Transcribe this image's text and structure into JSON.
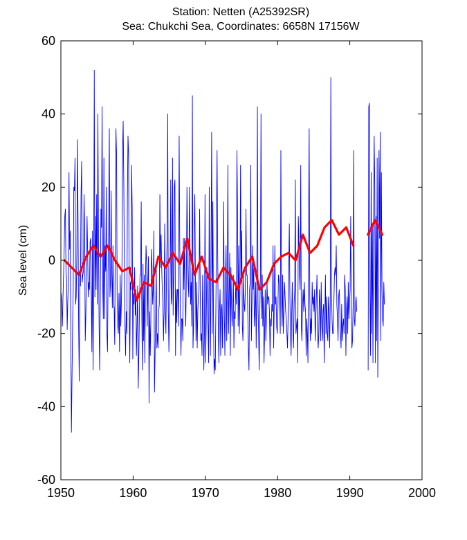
{
  "chart_data": {
    "type": "line",
    "title_lines": [
      "Station: Netten (A25392SR)",
      "Sea: Chukchi Sea, Coordinates: 6658N 17156W"
    ],
    "xlabel": "",
    "ylabel": "Sea level (cm)",
    "xlim": [
      1950,
      2000
    ],
    "ylim": [
      -60,
      60
    ],
    "xticks": [
      1950,
      1960,
      1970,
      1980,
      1990,
      2000
    ],
    "yticks": [
      -60,
      -40,
      -20,
      0,
      20,
      40,
      60
    ],
    "grid": false,
    "series": [
      {
        "kind": "monthly",
        "color": "#0000ff",
        "segments": [
          {
            "x_start": 1950.04,
            "x_step": 0.0833333,
            "values": [
              -9,
              -12,
              -18,
              -10,
              -4,
              3,
              12,
              14,
              -3,
              -5,
              -19,
              -11,
              -6,
              24,
              3,
              8,
              -20,
              -47,
              -32,
              -18,
              -8,
              20,
              19,
              28,
              -12,
              -10,
              1,
              33,
              12,
              -18,
              -33,
              -4,
              -7,
              18,
              27,
              -6,
              -4,
              -3,
              18,
              8,
              -22,
              -15,
              -2,
              12,
              2,
              -10,
              -6,
              -8,
              5,
              6,
              -10,
              -25,
              8,
              -30,
              -4,
              52,
              -10,
              12,
              -8,
              18,
              -12,
              40,
              6,
              -18,
              -30,
              -10,
              14,
              9,
              42,
              -7,
              -16,
              28,
              -16,
              4,
              -3,
              20,
              -20,
              -25,
              -3,
              12,
              36,
              -10,
              -6,
              19,
              -3,
              -13,
              4,
              -12,
              -13,
              -23,
              10,
              36,
              29,
              -10,
              -18,
              -20,
              -9,
              -25,
              -4,
              -18,
              -12,
              -2,
              30,
              38,
              22,
              -2,
              -18,
              -26,
              -14,
              -20,
              16,
              34,
              29,
              -12,
              -28,
              -6,
              -8,
              26,
              14,
              -27,
              -9,
              -12,
              -2,
              -15,
              -8,
              -26,
              -18,
              -7,
              -35,
              -26,
              -14,
              -4,
              -4,
              16,
              -16,
              -30,
              -1,
              -22,
              -4,
              -28,
              -6,
              4,
              -1,
              -18,
              -6,
              1,
              -39,
              -14,
              -26,
              -16,
              3,
              -2,
              -12,
              -8,
              8,
              -36,
              -26,
              -14,
              -2,
              -24,
              -20,
              -24,
              -14,
              -12,
              18,
              -2,
              7,
              -2,
              -8,
              -12,
              -22,
              -13,
              10,
              -14,
              -20,
              -4,
              6,
              40,
              -14,
              -25,
              -14,
              -6,
              22,
              -12,
              -10,
              28,
              -15,
              -4,
              20,
              22,
              -26,
              -8,
              -17,
              -8,
              -8,
              -18,
              34,
              4,
              -14,
              -26,
              -16,
              -16,
              -22,
              6,
              -8,
              6,
              -10,
              -18,
              -4,
              20,
              4,
              -6,
              -10,
              20,
              4,
              -12,
              -6,
              -18,
              45,
              -24,
              -18,
              8,
              18,
              -4,
              -22,
              -6,
              -24,
              -14,
              -10,
              -8,
              14,
              -8,
              -22,
              -20,
              -26,
              -4,
              -14,
              -30,
              -20,
              18,
              -28,
              -17,
              -2,
              -10,
              -18,
              -28,
              20,
              -12,
              -26,
              4,
              35,
              -20,
              16,
              -14,
              -31,
              -27,
              -30,
              -14,
              10,
              30,
              2,
              -17,
              -28,
              -14,
              -8,
              -26,
              -14,
              -12,
              -24,
              -8,
              16,
              -14,
              -26,
              -4,
              4,
              -22,
              -6,
              26,
              -20,
              -10,
              2,
              -26,
              -2,
              -12,
              -18,
              -14,
              -4,
              -24,
              -14,
              -16,
              -6,
              -12,
              30,
              14,
              -18,
              4,
              -20,
              -8,
              26,
              -6,
              8,
              -18,
              -22,
              -4,
              -12,
              -14,
              -8,
              14,
              -4,
              -4,
              -14,
              -24,
              -30,
              -8,
              -6,
              26,
              -22,
              -12,
              4,
              -8,
              -2,
              -18,
              -14,
              -6,
              -24,
              -6,
              42,
              -12,
              -20,
              -30,
              -14,
              -4,
              40,
              -16,
              -4,
              -18,
              -10,
              -28,
              -20,
              -8,
              -22,
              -16,
              -6,
              -12,
              -10,
              -10,
              -14,
              -26,
              -16,
              -18,
              -12,
              -14,
              4,
              -24,
              -12,
              4,
              -12,
              -10,
              -18,
              -20,
              -14,
              -4,
              -6,
              -10,
              -20,
              30,
              -8,
              -18,
              -4,
              -20,
              -14,
              -6,
              -10,
              -14,
              -16,
              -20,
              -24,
              -16,
              -4,
              10,
              -10,
              -20,
              -26,
              -14,
              -6,
              -20,
              -24,
              -12,
              -8,
              22,
              -20,
              -18,
              -16,
              -28,
              12,
              4,
              -4,
              -8,
              26,
              -18,
              -22,
              -12,
              -8,
              -14,
              -6,
              -12,
              -14,
              -26,
              -16,
              -20,
              -28,
              6,
              36,
              -10,
              -22,
              -16,
              -20,
              -6,
              -12,
              -10,
              -14,
              -8,
              -22,
              -16,
              -10,
              -4,
              -20,
              -24,
              -20,
              -8,
              -12,
              -22,
              -6,
              -18,
              -22,
              -14,
              -12,
              -28,
              -16,
              -4,
              -20,
              -10,
              -20,
              -22,
              -10,
              -14,
              -24,
              -12,
              50,
              -8,
              -16,
              -20,
              -20,
              -12,
              -4,
              -2,
              -4,
              4,
              -12,
              -16,
              -22,
              -10,
              -8,
              -14,
              -20,
              -24,
              -12,
              -22,
              -18,
              -16,
              -20,
              -4,
              -8,
              -26,
              -14,
              -10,
              -20,
              -6,
              -16,
              -12,
              -8,
              12,
              -14,
              -24,
              -22,
              -12,
              30,
              -16,
              -18,
              -12,
              -10,
              -14
            ]
          },
          {
            "x_start": 1992.54,
            "x_step": 0.0833333,
            "values": [
              -30,
              42,
              43,
              -10,
              -26,
              24,
              -20,
              10,
              -28,
              10,
              34,
              20,
              -28,
              12,
              -22,
              28,
              -32,
              -4,
              30,
              6,
              35,
              -22,
              24,
              -8,
              -16,
              -18,
              -6,
              -12
            ]
          }
        ]
      },
      {
        "name": "",
        "kind": "annual",
        "color": "#ff0000",
        "segments": [
          {
            "x": [
              1950.5,
              1951.5,
              1952.5,
              1953.5,
              1954.5,
              1955.5,
              1956.5,
              1957.5,
              1958.5,
              1959.5,
              1960.5,
              1961.5,
              1962.5,
              1963.5,
              1964.5,
              1965.5,
              1966.5,
              1967.5,
              1968.5,
              1969.5,
              1970.5,
              1971.5,
              1972.5,
              1973.5,
              1974.5,
              1975.5,
              1976.5,
              1977.5,
              1978.5,
              1979.5,
              1980.5,
              1981.5,
              1982.5,
              1983.5,
              1984.5,
              1985.5,
              1986.5,
              1987.5,
              1988.5,
              1989.5,
              1990.5
            ],
            "y": [
              0,
              -2,
              -4,
              1,
              4,
              1,
              4,
              0,
              -3,
              -2,
              -11,
              -6,
              -7,
              1,
              -2,
              2,
              -1,
              6,
              -4,
              1,
              -5,
              -6,
              -2,
              -4,
              -8,
              -2,
              1,
              -8,
              -6,
              -1,
              1,
              2,
              0,
              7,
              2,
              4,
              9,
              11,
              7,
              9,
              4
            ]
          },
          {
            "x": [
              1992.5,
              1993.5,
              1994.5
            ],
            "y": [
              7,
              11,
              7
            ]
          }
        ]
      }
    ]
  }
}
